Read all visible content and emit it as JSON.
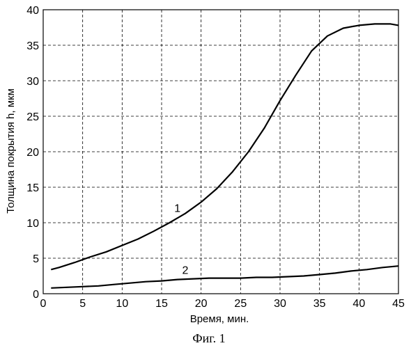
{
  "chart_data": {
    "type": "line",
    "title": "",
    "xlabel": "Время, мин.",
    "ylabel": "Толщина покрытия h, мкм",
    "caption": "Фиг. 1",
    "xlim": [
      0,
      45
    ],
    "ylim": [
      0,
      40
    ],
    "xticks": [
      0,
      5,
      10,
      15,
      20,
      25,
      30,
      35,
      40,
      45
    ],
    "yticks": [
      0,
      5,
      10,
      15,
      20,
      25,
      30,
      35,
      40
    ],
    "grid": true,
    "series": [
      {
        "name": "1",
        "x": [
          1,
          2,
          4,
          6,
          8,
          10,
          12,
          14,
          16,
          18,
          20,
          22,
          24,
          26,
          28,
          30,
          32,
          34,
          36,
          38,
          40,
          42,
          44,
          45
        ],
        "y": [
          3.4,
          3.7,
          4.4,
          5.2,
          5.9,
          6.8,
          7.7,
          8.8,
          10.0,
          11.3,
          12.9,
          14.8,
          17.2,
          20.0,
          23.3,
          27.2,
          30.8,
          34.2,
          36.3,
          37.4,
          37.8,
          38.0,
          38.0,
          37.8
        ]
      },
      {
        "name": "2",
        "x": [
          1,
          3,
          5,
          7,
          9,
          11,
          13,
          15,
          17,
          19,
          21,
          23,
          25,
          27,
          29,
          31,
          33,
          35,
          37,
          39,
          41,
          43,
          45
        ],
        "y": [
          0.8,
          0.9,
          1.0,
          1.1,
          1.3,
          1.5,
          1.7,
          1.8,
          2.0,
          2.1,
          2.2,
          2.2,
          2.2,
          2.3,
          2.3,
          2.4,
          2.5,
          2.7,
          2.9,
          3.2,
          3.4,
          3.7,
          3.9
        ]
      }
    ]
  }
}
